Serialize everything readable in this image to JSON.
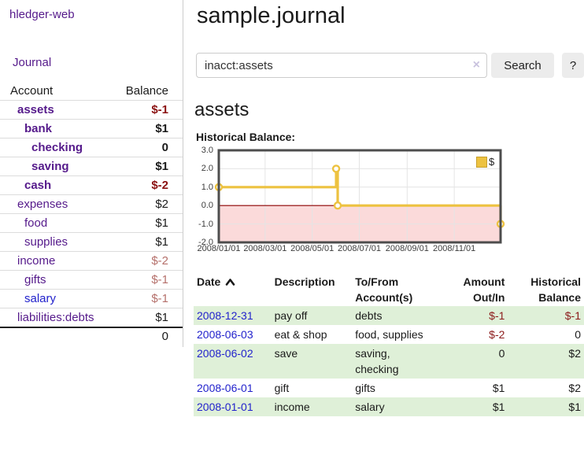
{
  "sidebar": {
    "brand": "hledger-web",
    "journal_link": "Journal",
    "accounts_header": {
      "account": "Account",
      "balance": "Balance"
    },
    "accounts": [
      {
        "name": "assets",
        "balance": "$-1"
      },
      {
        "name": "bank",
        "balance": "$1"
      },
      {
        "name": "checking",
        "balance": "0"
      },
      {
        "name": "saving",
        "balance": "$1"
      },
      {
        "name": "cash",
        "balance": "$-2"
      },
      {
        "name": "expenses",
        "balance": "$2"
      },
      {
        "name": "food",
        "balance": "$1"
      },
      {
        "name": "supplies",
        "balance": "$1"
      },
      {
        "name": "income",
        "balance": "$-2"
      },
      {
        "name": "gifts",
        "balance": "$-1"
      },
      {
        "name": "salary",
        "balance": "$-1"
      },
      {
        "name": "liabilities:debts",
        "balance": "$1"
      }
    ],
    "total": "0"
  },
  "header": {
    "title": "sample.journal"
  },
  "search": {
    "query": "inacct:assets",
    "clear_icon": "×",
    "button": "Search",
    "help_button": "?"
  },
  "account_page": {
    "heading": "assets",
    "chart_label": "Historical Balance:"
  },
  "chart_data": {
    "type": "line",
    "step": true,
    "title": "Historical Balance:",
    "legend": {
      "label": "$",
      "position": "top-right"
    },
    "ylim": [
      -2,
      3
    ],
    "xlim_days": [
      0,
      365
    ],
    "ytick_labels": [
      "3.0",
      "2.0",
      "1.0",
      "0.0",
      "-1.0",
      "-2.0"
    ],
    "yticks": [
      3,
      2,
      1,
      0,
      -1,
      -2
    ],
    "xticks": [
      {
        "label": "2008/01/01",
        "day": 0
      },
      {
        "label": "2008/03/01",
        "day": 60
      },
      {
        "label": "2008/05/01",
        "day": 121
      },
      {
        "label": "2008/07/01",
        "day": 182
      },
      {
        "label": "2008/09/01",
        "day": 244
      },
      {
        "label": "2008/11/01",
        "day": 305
      }
    ],
    "series": [
      {
        "name": "$",
        "color": "#edc240",
        "points": [
          {
            "date": "2008-01-01",
            "day": 0,
            "value": 1
          },
          {
            "date": "2008-06-01",
            "day": 152,
            "value": 2
          },
          {
            "date": "2008-06-03",
            "day": 154,
            "value": 0
          },
          {
            "date": "2008-12-31",
            "day": 365,
            "value": -1
          }
        ]
      }
    ],
    "grid": true,
    "negative_region": true,
    "colors": {
      "line": "#edc240",
      "marker_fill": "#ffffff",
      "negative_band": "#fbdada",
      "zero_line": "#8b0000",
      "border": "#4d4d4d",
      "gridline": "#e4e4e4"
    }
  },
  "register": {
    "columns": {
      "date": "Date",
      "description": "Description",
      "accounts": "To/From Account(s)",
      "amount": "Amount Out/In",
      "balance": "Historical Balance"
    },
    "rows": [
      {
        "date": "2008-12-31",
        "description": "pay off",
        "accounts": "debts",
        "amount": "$-1",
        "balance": "$-1"
      },
      {
        "date": "2008-06-03",
        "description": "eat & shop",
        "accounts": "food, supplies",
        "amount": "$-2",
        "balance": "0"
      },
      {
        "date": "2008-06-02",
        "description": "save",
        "accounts": "saving, checking",
        "amount": "0",
        "balance": "$2"
      },
      {
        "date": "2008-06-01",
        "description": "gift",
        "accounts": "gifts",
        "amount": "$1",
        "balance": "$2"
      },
      {
        "date": "2008-01-01",
        "description": "income",
        "accounts": "salary",
        "amount": "$1",
        "balance": "$1"
      }
    ]
  }
}
